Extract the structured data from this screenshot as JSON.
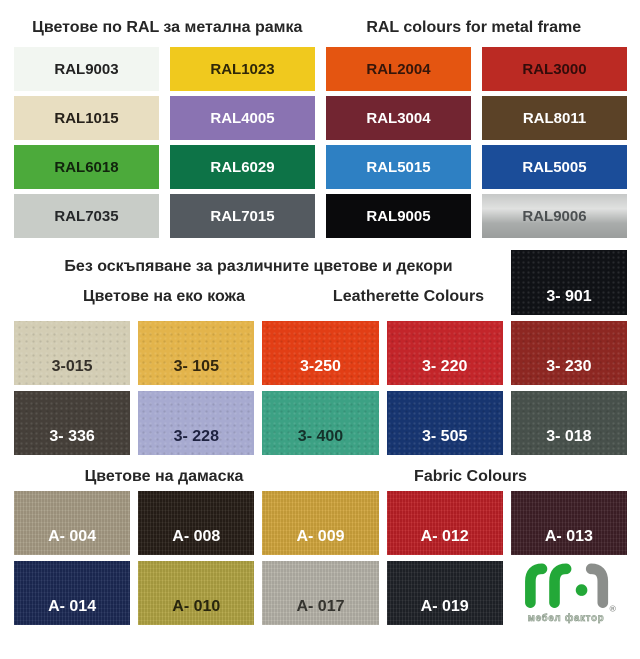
{
  "headers": {
    "ral_bg": "Цветове по RAL за метална рамка",
    "ral_en": "RAL colours for metal frame",
    "no_extra_cost": "Без оскъпяване за различните цветове и декори",
    "leatherette_bg": "Цветове на еко кожа",
    "leatherette_en": "Leatherette Colours",
    "fabric_bg": "Цветове на дамаска",
    "fabric_en": "Fabric Colours"
  },
  "ral_colors": [
    {
      "label": "RAL9003",
      "bg": "#f2f6f1",
      "fg": "#222222"
    },
    {
      "label": "RAL1023",
      "bg": "#f0c91e",
      "fg": "#2f2708"
    },
    {
      "label": "RAL2004",
      "bg": "#e45511",
      "fg": "#35160a"
    },
    {
      "label": "RAL3000",
      "bg": "#bb2a23",
      "fg": "#330c0a"
    },
    {
      "label": "RAL1015",
      "bg": "#e8dec1",
      "fg": "#26211a"
    },
    {
      "label": "RAL4005",
      "bg": "#8a73b2",
      "fg": "#ffffff"
    },
    {
      "label": "RAL3004",
      "bg": "#722531",
      "fg": "#ffffff"
    },
    {
      "label": "RAL8011",
      "bg": "#5b4227",
      "fg": "#ffffff"
    },
    {
      "label": "RAL6018",
      "bg": "#4caa3b",
      "fg": "#11240d"
    },
    {
      "label": "RAL6029",
      "bg": "#0d7347",
      "fg": "#ffffff"
    },
    {
      "label": "RAL5015",
      "bg": "#2e80c3",
      "fg": "#ffffff"
    },
    {
      "label": "RAL5005",
      "bg": "#1b4d99",
      "fg": "#ffffff"
    },
    {
      "label": "RAL7035",
      "bg": "#c8ccc7",
      "fg": "#26282a"
    },
    {
      "label": "RAL7015",
      "bg": "#545a60",
      "fg": "#ffffff"
    },
    {
      "label": "RAL9005",
      "bg": "#0a0a0c",
      "fg": "#ffffff"
    },
    {
      "label": "RAL9006",
      "bg": "#b5b8b7",
      "fg": "#4c5052",
      "gradient": [
        "#c6c8c7",
        "#e0e1e0",
        "#a9acab",
        "#9b9e9d"
      ]
    }
  ],
  "leatherette_featured": {
    "label": "3- 901",
    "bg": "#101216",
    "fg": "#ffffff"
  },
  "leatherette_colors": [
    {
      "label": "3-015",
      "bg": "#d3cdb4",
      "fg": "#35312a"
    },
    {
      "label": "3- 105",
      "bg": "#e3b44b",
      "fg": "#33270e"
    },
    {
      "label": "3-250",
      "bg": "#e23e15",
      "fg": "#ffffff"
    },
    {
      "label": "3- 220",
      "bg": "#c3252a",
      "fg": "#ffffff"
    },
    {
      "label": "3- 230",
      "bg": "#8d2722",
      "fg": "#ffffff"
    },
    {
      "label": "3- 336",
      "bg": "#453f39",
      "fg": "#ffffff"
    },
    {
      "label": "3- 228",
      "bg": "#a7aad0",
      "fg": "#1e2240"
    },
    {
      "label": "3- 400",
      "bg": "#3ca184",
      "fg": "#14322a"
    },
    {
      "label": "3- 505",
      "bg": "#173570",
      "fg": "#ffffff"
    },
    {
      "label": "3- 018",
      "bg": "#47504b",
      "fg": "#ffffff"
    }
  ],
  "fabric_colors": [
    {
      "label": "A- 004",
      "bg": "#a89d86",
      "fg": "#ffffff"
    },
    {
      "label": "A- 008",
      "bg": "#281f18",
      "fg": "#ffffff"
    },
    {
      "label": "A- 009",
      "bg": "#d2a63c",
      "fg": "#ffffff"
    },
    {
      "label": "A- 012",
      "bg": "#bd2026",
      "fg": "#ffffff"
    },
    {
      "label": "A- 013",
      "bg": "#402028",
      "fg": "#ffffff"
    },
    {
      "label": "A- 014",
      "bg": "#1c2a55",
      "fg": "#ffffff"
    },
    {
      "label": "A- 010",
      "bg": "#b2a443",
      "fg": "#28250e"
    },
    {
      "label": "A- 017",
      "bg": "#b7b4aa",
      "fg": "#35342f"
    },
    {
      "label": "A- 019",
      "bg": "#202329",
      "fg": "#ffffff"
    }
  ],
  "logo": {
    "text": "мебел фактор",
    "registered": "®",
    "green": "#23a838",
    "grey": "#8b8e8b",
    "text_fill": "#d7e0d4",
    "text_stroke": "#8f9e8f"
  }
}
